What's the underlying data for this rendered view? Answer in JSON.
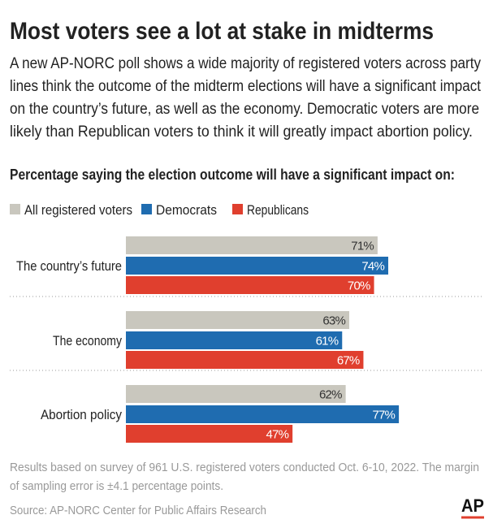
{
  "chart_data": {
    "type": "bar",
    "orientation": "horizontal",
    "title": "Most voters see a lot at stake in midterms",
    "subtitle": [
      "A new AP-NORC poll shows a wide majority of registered voters across party",
      "lines think the outcome of the midterm elections will have a significant impact",
      "on the country’s future, as well as the economy. Democratic voters are more",
      "likely than Republican voters to think it will greatly impact abortion policy."
    ],
    "heading": "Percentage saying the election outcome will have a significant impact on:",
    "categories": [
      "The country’s future",
      "The economy",
      "Abortion policy"
    ],
    "series": [
      {
        "name": "All registered voters",
        "color": "#c9c7be",
        "values": [
          71,
          63,
          62
        ],
        "value_labels": [
          "71%",
          "63%",
          "62%"
        ]
      },
      {
        "name": "Democrats",
        "color": "#1f6cb0",
        "values": [
          74,
          61,
          77
        ],
        "value_labels": [
          "74%",
          "61%",
          "77%"
        ]
      },
      {
        "name": "Republicans",
        "color": "#e03f2e",
        "values": [
          70,
          67,
          47
        ],
        "value_labels": [
          "70%",
          "67%",
          "47%"
        ]
      }
    ],
    "notes": [
      "Results based on survey of 961 U.S. registered voters conducted Oct. 6-10, 2022. The margin",
      "of sampling error is ±4.1 percentage points."
    ],
    "source": "Source: AP-NORC Center for Public Affairs Research",
    "logo": "AP"
  }
}
